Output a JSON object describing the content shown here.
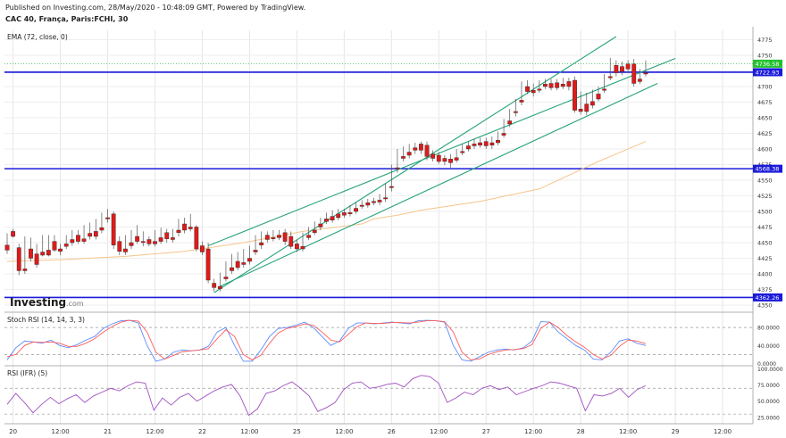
{
  "header": {
    "published": "Published on Investing.com, 28/May/2020 - 10:48:09 GMT, Powered by TradingView.",
    "symbol": "CAC 40, França, Paris:FCHI, 30"
  },
  "logo": {
    "name": "Investing",
    "suffix": ".com"
  },
  "chart_data": [
    {
      "type": "candlestick",
      "indicator_label": "EMA (72, close, 0)",
      "ylim": [
        4340,
        4790
      ],
      "yticks": [
        4350,
        4375,
        4400,
        4425,
        4450,
        4475,
        4500,
        4525,
        4550,
        4575,
        4600,
        4625,
        4650,
        4675,
        4700,
        4725,
        4750,
        4775
      ],
      "x_ticks": [
        {
          "label": "20",
          "i": 1
        },
        {
          "label": "12:00",
          "i": 9
        },
        {
          "label": "21",
          "i": 17
        },
        {
          "label": "12:00",
          "i": 25
        },
        {
          "label": "22",
          "i": 33
        },
        {
          "label": "12:00",
          "i": 41
        },
        {
          "label": "25",
          "i": 49
        },
        {
          "label": "12:00",
          "i": 57
        },
        {
          "label": "26",
          "i": 65
        },
        {
          "label": "12:00",
          "i": 73
        },
        {
          "label": "27",
          "i": 81
        },
        {
          "label": "12:00",
          "i": 89
        },
        {
          "label": "28",
          "i": 97
        },
        {
          "label": "12:00",
          "i": 105
        },
        {
          "label": "29",
          "i": 113
        },
        {
          "label": "12:00",
          "i": 121
        }
      ],
      "candles": [
        [
          4446,
          4465,
          4438,
          4432
        ],
        [
          4468,
          4472,
          4460,
          4458
        ],
        [
          4442,
          4448,
          4405,
          4398
        ],
        [
          4408,
          4460,
          4405,
          4400
        ],
        [
          4440,
          4458,
          4425,
          4420
        ],
        [
          4432,
          4448,
          4415,
          4410
        ],
        [
          4435,
          4462,
          4430,
          4428
        ],
        [
          4438,
          4462,
          4430,
          4428
        ],
        [
          4452,
          4462,
          4438,
          4435
        ],
        [
          4440,
          4448,
          4436,
          4430
        ],
        [
          4448,
          4462,
          4444,
          4440
        ],
        [
          4455,
          4470,
          4450,
          4445
        ],
        [
          4462,
          4470,
          4452,
          4448
        ],
        [
          4456,
          4478,
          4452,
          4448
        ],
        [
          4465,
          4482,
          4460,
          4455
        ],
        [
          4468,
          4488,
          4460,
          4455
        ],
        [
          4474,
          4498,
          4470,
          4465
        ],
        [
          4490,
          4504,
          4488,
          4482
        ],
        [
          4496,
          4500,
          4446,
          4440
        ],
        [
          4452,
          4460,
          4436,
          4430
        ],
        [
          4440,
          4462,
          4435,
          4430
        ],
        [
          4450,
          4470,
          4445,
          4440
        ],
        [
          4460,
          4478,
          4452,
          4448
        ],
        [
          4452,
          4468,
          4450,
          4444
        ],
        [
          4455,
          4460,
          4448,
          4444
        ],
        [
          4452,
          4470,
          4448,
          4444
        ],
        [
          4458,
          4474,
          4452,
          4448
        ],
        [
          4466,
          4472,
          4456,
          4450
        ],
        [
          4458,
          4472,
          4455,
          4450
        ],
        [
          4470,
          4488,
          4466,
          4460
        ],
        [
          4480,
          4490,
          4470,
          4465
        ],
        [
          4475,
          4496,
          4472,
          4468
        ],
        [
          4475,
          4478,
          4440,
          4436
        ],
        [
          4445,
          4452,
          4435,
          4430
        ],
        [
          4440,
          4450,
          4390,
          4385
        ],
        [
          4385,
          4392,
          4378,
          4372
        ],
        [
          4380,
          4402,
          4376,
          4372
        ],
        [
          4395,
          4420,
          4392,
          4388
        ],
        [
          4410,
          4432,
          4405,
          4400
        ],
        [
          4420,
          4435,
          4410,
          4406
        ],
        [
          4418,
          4440,
          4415,
          4410
        ],
        [
          4425,
          4445,
          4420,
          4415
        ],
        [
          4438,
          4462,
          4435,
          4430
        ],
        [
          4450,
          4468,
          4446,
          4440
        ],
        [
          4462,
          4468,
          4455,
          4450
        ],
        [
          4458,
          4470,
          4456,
          4452
        ],
        [
          4462,
          4470,
          4458,
          4454
        ],
        [
          4466,
          4472,
          4452,
          4446
        ],
        [
          4460,
          4468,
          4444,
          4440
        ],
        [
          4448,
          4455,
          4440,
          4435
        ],
        [
          4444,
          4466,
          4440,
          4436
        ],
        [
          4462,
          4475,
          4458,
          4454
        ],
        [
          4470,
          4484,
          4466,
          4462
        ],
        [
          4480,
          4490,
          4475,
          4470
        ],
        [
          4488,
          4498,
          4484,
          4480
        ],
        [
          4492,
          4502,
          4486,
          4482
        ],
        [
          4496,
          4504,
          4490,
          4486
        ],
        [
          4498,
          4504,
          4494,
          4490
        ],
        [
          4498,
          4510,
          4496,
          4492
        ],
        [
          4505,
          4515,
          4500,
          4496
        ],
        [
          4510,
          4518,
          4508,
          4504
        ],
        [
          4514,
          4520,
          4510,
          4506
        ],
        [
          4516,
          4522,
          4514,
          4510
        ],
        [
          4518,
          4528,
          4515,
          4510
        ],
        [
          4522,
          4545,
          4520,
          4515
        ],
        [
          4540,
          4575,
          4538,
          4532
        ],
        [
          4570,
          4600,
          4568,
          4562
        ],
        [
          4588,
          4604,
          4585,
          4580
        ],
        [
          4595,
          4608,
          4590,
          4585
        ],
        [
          4602,
          4610,
          4598,
          4592
        ],
        [
          4608,
          4612,
          4598,
          4592
        ],
        [
          4606,
          4612,
          4588,
          4582
        ],
        [
          4592,
          4598,
          4585,
          4580
        ],
        [
          4590,
          4595,
          4580,
          4576
        ],
        [
          4585,
          4590,
          4580,
          4574
        ],
        [
          4584,
          4592,
          4578,
          4570
        ],
        [
          4586,
          4600,
          4582,
          4578
        ],
        [
          4596,
          4608,
          4594,
          4590
        ],
        [
          4605,
          4612,
          4600,
          4596
        ],
        [
          4608,
          4616,
          4605,
          4600
        ],
        [
          4610,
          4618,
          4606,
          4602
        ],
        [
          4612,
          4618,
          4605,
          4600
        ],
        [
          4610,
          4620,
          4606,
          4600
        ],
        [
          4614,
          4628,
          4610,
          4606
        ],
        [
          4625,
          4648,
          4622,
          4618
        ],
        [
          4645,
          4664,
          4640,
          4635
        ],
        [
          4660,
          4680,
          4658,
          4652
        ],
        [
          4678,
          4708,
          4675,
          4670
        ],
        [
          4700,
          4710,
          4692,
          4688
        ],
        [
          4694,
          4705,
          4690,
          4684
        ],
        [
          4696,
          4710,
          4694,
          4690
        ],
        [
          4704,
          4712,
          4700,
          4696
        ],
        [
          4705,
          4712,
          4698,
          4694
        ],
        [
          4706,
          4712,
          4698,
          4694
        ],
        [
          4704,
          4714,
          4700,
          4696
        ],
        [
          4708,
          4714,
          4700,
          4694
        ],
        [
          4710,
          4716,
          4662,
          4658
        ],
        [
          4664,
          4692,
          4660,
          4655
        ],
        [
          4672,
          4690,
          4660,
          4654
        ],
        [
          4676,
          4695,
          4670,
          4665
        ],
        [
          4688,
          4700,
          4680,
          4676
        ],
        [
          4696,
          4720,
          4694,
          4690
        ],
        [
          4716,
          4746,
          4714,
          4710
        ],
        [
          4734,
          4742,
          4722,
          4716
        ],
        [
          4732,
          4740,
          4724,
          4718
        ],
        [
          4736,
          4742,
          4728,
          4722
        ],
        [
          4736,
          4744,
          4705,
          4700
        ],
        [
          4712,
          4728,
          4708,
          4704
        ],
        [
          4722,
          4742,
          4720,
          4716
        ]
      ],
      "ema": [
        [
          0,
          4420
        ],
        [
          10,
          4423
        ],
        [
          20,
          4428
        ],
        [
          30,
          4436
        ],
        [
          40,
          4450
        ],
        [
          50,
          4468
        ],
        [
          60,
          4480
        ],
        [
          62,
          4488
        ],
        [
          66,
          4494
        ],
        [
          70,
          4502
        ],
        [
          80,
          4516
        ],
        [
          90,
          4536
        ],
        [
          95,
          4558
        ],
        [
          100,
          4580
        ],
        [
          104,
          4596
        ],
        [
          108,
          4612
        ]
      ],
      "horizontal_levels": [
        {
          "value": 4722.93,
          "label": "4722.93"
        },
        {
          "value": 4568.38,
          "label": "4568.38"
        },
        {
          "value": 4362.26,
          "label": "4362.26"
        }
      ],
      "price_label": {
        "value": 4736.58,
        "label": "4736.58"
      },
      "channel_lines": [
        {
          "from": [
            35,
            4370
          ],
          "to": [
            103,
            4780
          ]
        },
        {
          "from": [
            34,
            4445
          ],
          "to": [
            113,
            4745
          ]
        },
        {
          "from": [
            36,
            4380
          ],
          "to": [
            110,
            4705
          ]
        }
      ]
    },
    {
      "type": "line",
      "title": "Stoch RSI (14, 14, 3, 3)",
      "ylim": [
        -5,
        112
      ],
      "yticks": [
        {
          "value": 80,
          "label": "80.0000"
        },
        {
          "value": 40,
          "label": "40.0000"
        },
        {
          "value": 0,
          "label": "0.0000"
        }
      ],
      "dashed_levels": [
        80,
        20
      ],
      "series": [
        {
          "color": "#5b8cff",
          "values": [
            8,
            35,
            50,
            48,
            45,
            52,
            40,
            35,
            42,
            52,
            60,
            78,
            88,
            95,
            96,
            90,
            40,
            5,
            10,
            25,
            30,
            28,
            30,
            38,
            70,
            80,
            40,
            5,
            5,
            30,
            60,
            78,
            80,
            85,
            92,
            80,
            60,
            40,
            50,
            78,
            90,
            90,
            88,
            90,
            92,
            90,
            88,
            95,
            96,
            95,
            92,
            40,
            8,
            5,
            15,
            25,
            30,
            32,
            30,
            35,
            50,
            93,
            92,
            70,
            55,
            40,
            30,
            10,
            8,
            25,
            50,
            55,
            45,
            40
          ]
        },
        {
          "color": "#ff5a5a",
          "values": [
            15,
            20,
            40,
            48,
            47,
            48,
            45,
            38,
            38,
            45,
            55,
            70,
            82,
            92,
            96,
            94,
            70,
            25,
            10,
            18,
            26,
            28,
            30,
            33,
            55,
            75,
            60,
            20,
            8,
            18,
            45,
            68,
            78,
            82,
            88,
            85,
            70,
            52,
            48,
            65,
            82,
            90,
            89,
            89,
            91,
            91,
            90,
            92,
            95,
            95,
            93,
            70,
            25,
            8,
            10,
            20,
            26,
            30,
            31,
            33,
            42,
            78,
            92,
            80,
            62,
            48,
            36,
            20,
            10,
            18,
            38,
            52,
            50,
            44
          ]
        }
      ]
    },
    {
      "type": "line",
      "title": "RSI (IFR) (5)",
      "ylim": [
        15,
        105
      ],
      "yticks": [
        {
          "value": 100,
          "label": "100.0000"
        },
        {
          "value": 75,
          "label": "75.0000"
        },
        {
          "value": 50,
          "label": "50.0000"
        },
        {
          "value": 25,
          "label": "25.0000"
        }
      ],
      "dashed_levels": [
        70,
        30
      ],
      "series": [
        {
          "color": "#a050c0",
          "values": [
            45,
            62,
            48,
            32,
            45,
            56,
            46,
            54,
            60,
            48,
            58,
            64,
            70,
            66,
            74,
            80,
            78,
            36,
            55,
            44,
            56,
            62,
            50,
            58,
            66,
            72,
            76,
            58,
            28,
            38,
            62,
            66,
            74,
            80,
            70,
            58,
            34,
            40,
            48,
            68,
            78,
            80,
            70,
            72,
            76,
            78,
            72,
            85,
            90,
            88,
            78,
            48,
            55,
            64,
            60,
            70,
            74,
            68,
            72,
            60,
            65,
            70,
            74,
            80,
            78,
            74,
            70,
            35,
            60,
            58,
            62,
            70,
            56,
            68,
            74
          ]
        }
      ]
    }
  ]
}
